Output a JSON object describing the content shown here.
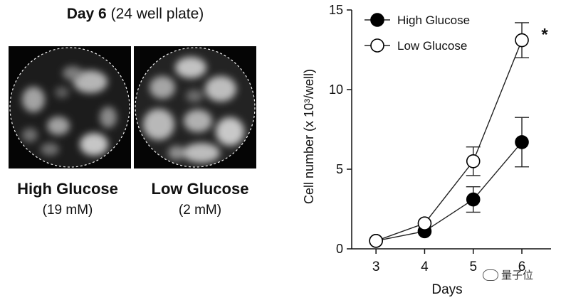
{
  "panel": {
    "title_bold": "Day 6",
    "title_rest": "(24 well plate)",
    "wells": [
      {
        "name": "High Glucose",
        "concentration": "(19 mM)"
      },
      {
        "name": "Low Glucose",
        "concentration": "(2 mM)"
      }
    ]
  },
  "chart_data": {
    "type": "line",
    "x": [
      3,
      4,
      5,
      6
    ],
    "xlabel": "Days",
    "ylabel": "Cell number (x 10³/well)",
    "xlim": [
      2.5,
      6.6
    ],
    "ylim": [
      0,
      15
    ],
    "xticks": [
      3,
      4,
      5,
      6
    ],
    "yticks": [
      0,
      5,
      10,
      15
    ],
    "grid": false,
    "legend_position": "top-left",
    "significance_marker": "*",
    "series": [
      {
        "name": "High Glucose",
        "marker": "filled-circle",
        "values": [
          0.5,
          1.1,
          3.1,
          6.7
        ],
        "errors": [
          0.1,
          0.15,
          0.8,
          1.55
        ]
      },
      {
        "name": "Low Glucose",
        "marker": "open-circle",
        "values": [
          0.5,
          1.6,
          5.5,
          13.1
        ],
        "errors": [
          0.1,
          0.15,
          0.9,
          1.1
        ]
      }
    ]
  },
  "watermark": {
    "text": "量子位"
  }
}
